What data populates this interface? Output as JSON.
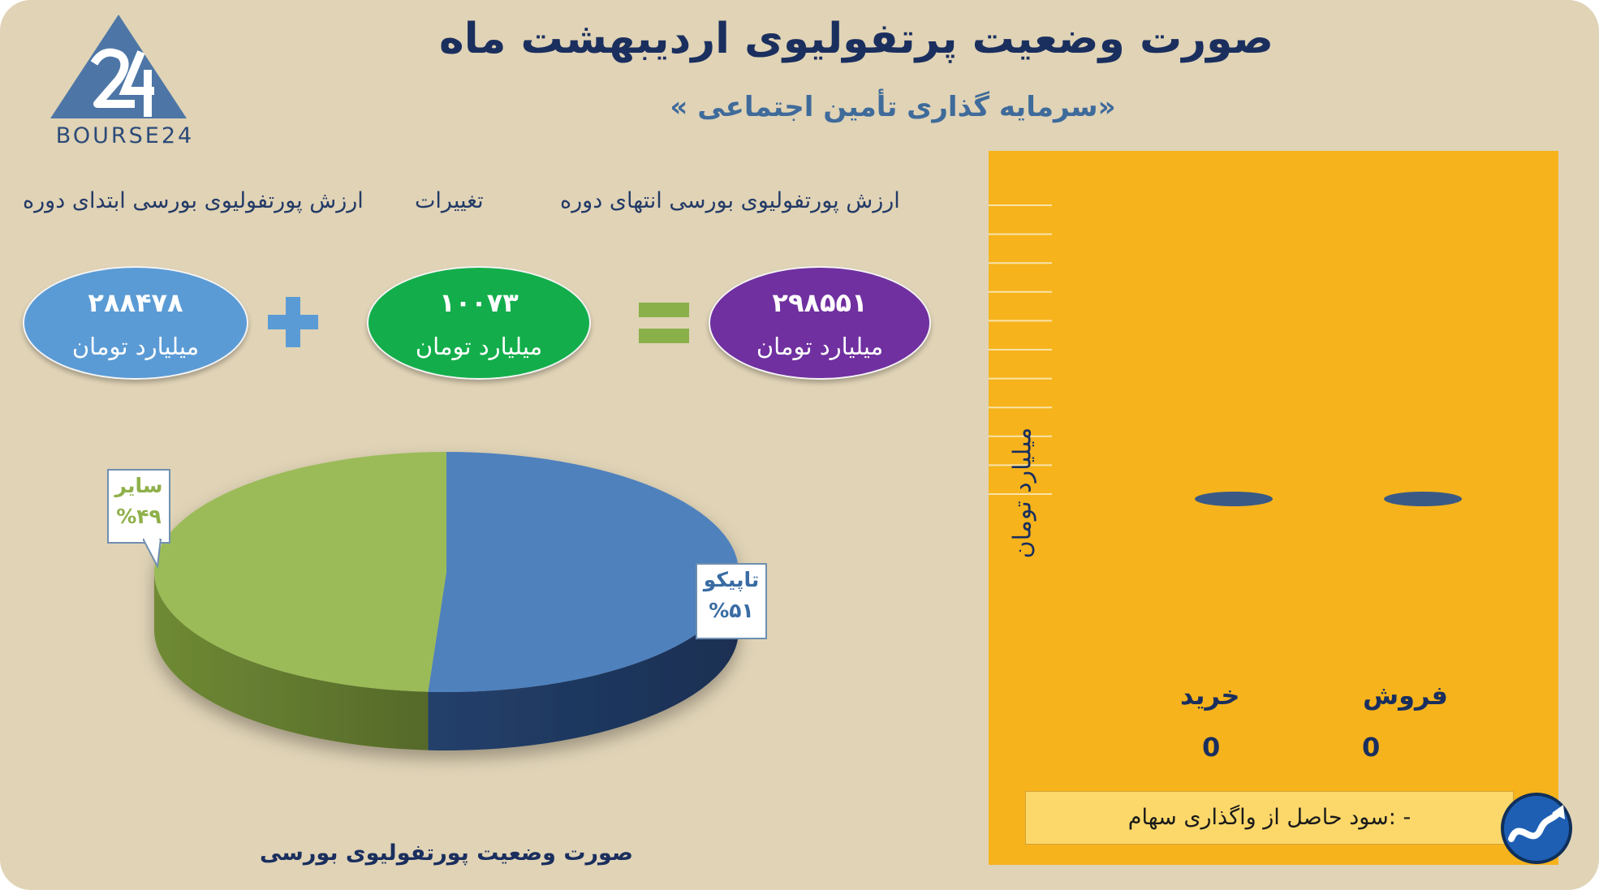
{
  "title": "صورت وضعیت پرتفولیوی اردیبهشت ماه",
  "subtitle": "«سرمایه گذاری تأمین اجتماعی »",
  "logo": {
    "text": "BOURSE24",
    "mark": "24"
  },
  "summary": {
    "headers": {
      "start": "ارزش پورتفولیوی بورسی ابتدای دوره",
      "changes": "تغییرات",
      "end": "ارزش پورتفولیوی بورسی انتهای دوره"
    },
    "start": {
      "value": "۲۸۸۴۷۸",
      "unit": "میلیارد تومان",
      "color": "#5b9bd5"
    },
    "change": {
      "value": "۱۰۰۷۳",
      "unit": "میلیارد تومان",
      "color": "#13ae4b"
    },
    "end": {
      "value": "۲۹۸۵۵۱",
      "unit": "میلیارد تومان",
      "color": "#7030a0"
    },
    "plus_color": "#5b9bd5",
    "equals_color": "#8ab04a"
  },
  "pie_caption": "صورت وضعیت پورتفولیوی بورسی",
  "net_profit_note": "- :سود حاصل از واگذاری سهام",
  "chart_data": [
    {
      "type": "pie",
      "title": "",
      "slices": [
        {
          "label": "تاپیکو",
          "percent_label": "%۵۱",
          "value": 51,
          "color": "#4f81bd"
        },
        {
          "label": "سایر",
          "percent_label": "%۴۹",
          "value": 49,
          "color": "#9bbb59"
        }
      ]
    },
    {
      "type": "bar",
      "ylabel": "میلیارد تومان",
      "categories": [
        "خرید",
        "فروش"
      ],
      "values": [
        0,
        0
      ],
      "value_labels": [
        "0",
        "0"
      ],
      "ylim": [
        0,
        1
      ],
      "yticks": [
        "۰",
        "۰.۱",
        "۰.۲",
        "۰.۳",
        "۰.۴",
        "۰.۵",
        "۰.۶",
        "۰.۷",
        "۰.۸",
        "۰.۹",
        "۱"
      ],
      "grid": true,
      "bar_color": "#3a5a85",
      "background": "#f6b31c"
    }
  ]
}
